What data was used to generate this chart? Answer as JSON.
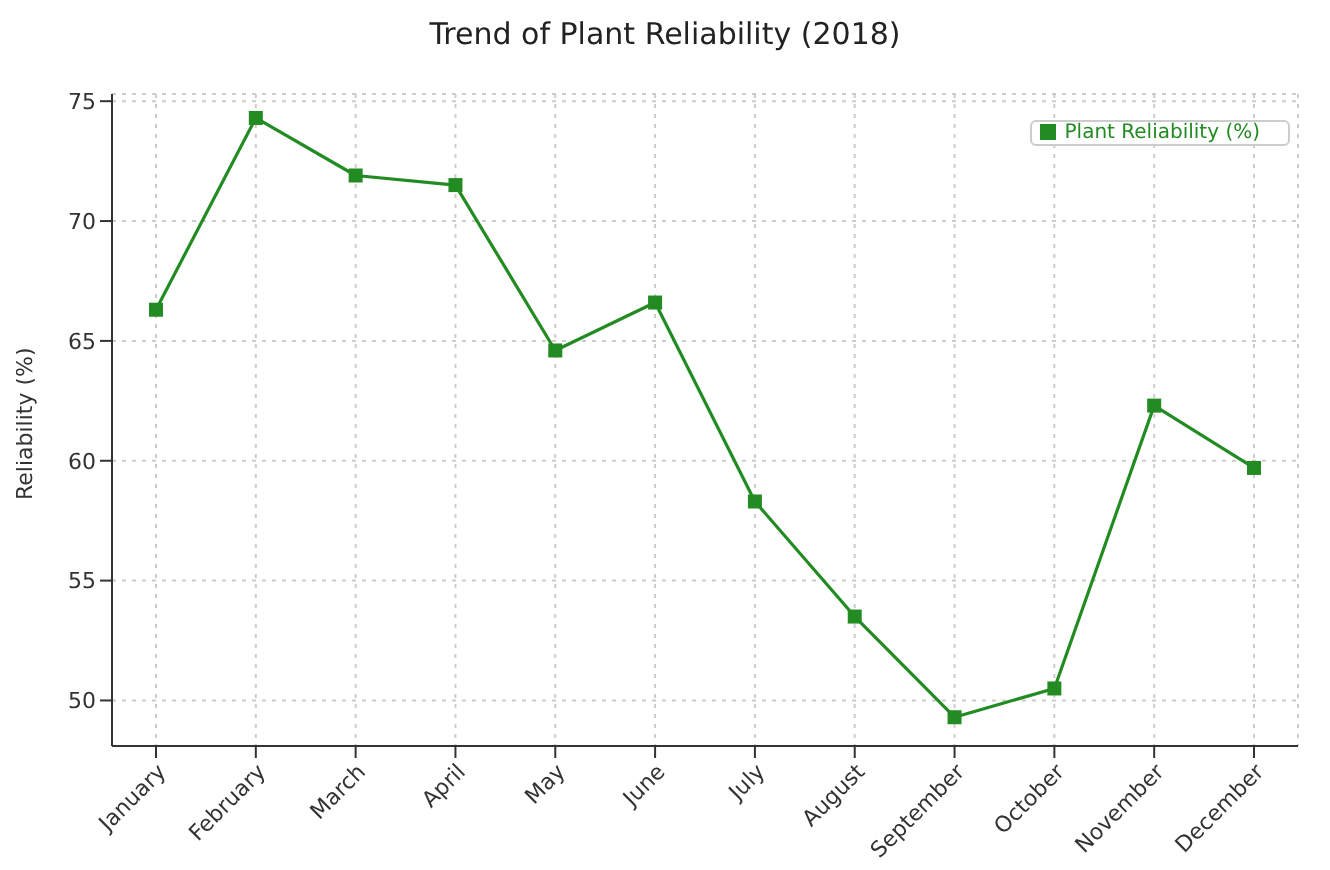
{
  "chart_data": {
    "type": "line",
    "title": "Trend of Plant Reliability (2018)",
    "ylabel": "Reliability (%)",
    "categories": [
      "January",
      "February",
      "March",
      "April",
      "May",
      "June",
      "July",
      "August",
      "September",
      "October",
      "November",
      "December"
    ],
    "series": [
      {
        "name": "Plant Reliability (%)",
        "color": "#228b22",
        "values": [
          66.3,
          74.3,
          71.9,
          71.5,
          64.6,
          66.6,
          58.3,
          53.5,
          49.3,
          50.5,
          62.3,
          59.7
        ]
      }
    ],
    "ylim": [
      48.1,
      75.3
    ],
    "yticks": [
      50,
      55,
      60,
      65,
      70,
      75
    ],
    "grid": true,
    "legend": "top right",
    "marker": "square",
    "line_style": "solid"
  }
}
